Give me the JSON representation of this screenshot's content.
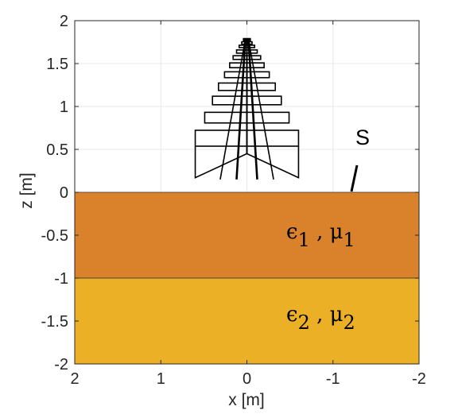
{
  "axes": {
    "xlabel": "x [m]",
    "ylabel": "z [m]",
    "xlim": [
      2,
      -2
    ],
    "ylim": [
      -2,
      2
    ],
    "x_ticks": [
      "2",
      "1",
      "0",
      "-1",
      "-2"
    ],
    "y_ticks": [
      "2",
      "1.5",
      "1",
      "0.5",
      "0",
      "-0.5",
      "-1",
      "-1.5",
      "-2"
    ],
    "x_reversed": true,
    "grid": true
  },
  "layers": [
    {
      "z_top": 0,
      "z_bottom": -1,
      "color": "#d9822b",
      "eps": "ϵ",
      "eps_sub": "1",
      "sep": " , ",
      "mu": "μ",
      "mu_sub": "1"
    },
    {
      "z_top": -1,
      "z_bottom": -2,
      "color": "#ecb026",
      "eps": "ϵ",
      "eps_sub": "2",
      "sep": " , ",
      "mu": "μ",
      "mu_sub": "2"
    }
  ],
  "surface_label": "S",
  "antenna": {
    "elements": [
      {
        "z": 0.63,
        "half_width": 0.6
      },
      {
        "z": 0.87,
        "half_width": 0.49
      },
      {
        "z": 1.07,
        "half_width": 0.4
      },
      {
        "z": 1.23,
        "half_width": 0.33
      },
      {
        "z": 1.37,
        "half_width": 0.26
      },
      {
        "z": 1.48,
        "half_width": 0.2
      },
      {
        "z": 1.57,
        "half_width": 0.16
      },
      {
        "z": 1.64,
        "half_width": 0.12
      },
      {
        "z": 1.7,
        "half_width": 0.09
      },
      {
        "z": 1.74,
        "half_width": 0.06
      },
      {
        "z": 1.77,
        "half_width": 0.04
      }
    ],
    "apex_z": 1.78
  },
  "colors": {
    "layer1": "#d9822b",
    "layer2": "#ecb026",
    "grid": "#e8e8e8",
    "axis": "#262626"
  }
}
